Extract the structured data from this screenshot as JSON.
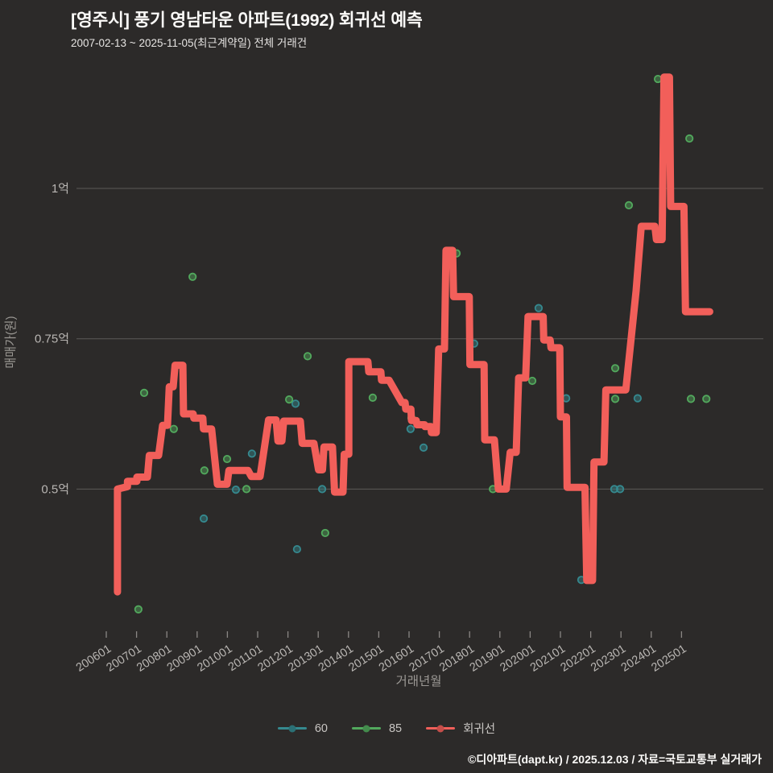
{
  "header": {
    "title": "[영주시] 풍기 영남타운 아파트(1992) 회귀선 예측",
    "subtitle": "2007-02-13 ~ 2025-11-05(최근계약일) 전체 거래건"
  },
  "footer": {
    "credit": "©디아파트(dapt.kr) / 2025.12.03 / 자료=국토교통부 실거래가"
  },
  "colors": {
    "background": "#2c2a29",
    "gridline": "#5c5a58",
    "tick_text": "#b9b6b3",
    "axis_title_text": "#9b9894",
    "title_text": "#fbfaf8"
  },
  "chart_data": {
    "type": "line",
    "title": "[영주시] 풍기 영남타운 아파트(1992) 회귀선 예측",
    "xlabel": "거래년월",
    "ylabel": "매매가(원)",
    "x_axis": {
      "tick_labels": [
        "200601",
        "200701",
        "200801",
        "200901",
        "201001",
        "201101",
        "201201",
        "201301",
        "201401",
        "201501",
        "201601",
        "201701",
        "201801",
        "201901",
        "202001",
        "202101",
        "202201",
        "202301",
        "202401",
        "202501"
      ],
      "tick_years": [
        2006,
        2007,
        2008,
        2009,
        2010,
        2011,
        2012,
        2013,
        2014,
        2015,
        2016,
        2017,
        2018,
        2019,
        2020,
        2021,
        2022,
        2023,
        2024,
        2025
      ]
    },
    "y_axis": {
      "unit": "억원",
      "ticks": [
        {
          "label": "1억",
          "value": 1.0
        },
        {
          "label": "0.75억",
          "value": 0.75
        },
        {
          "label": "0.5억",
          "value": 0.5
        }
      ],
      "ylim": [
        0.27,
        1.22
      ]
    },
    "series": [
      {
        "name": "60",
        "type": "scatter",
        "color": "#35898f",
        "points": [
          [
            2009.22,
            0.451
          ],
          [
            2010.28,
            0.499
          ],
          [
            2010.81,
            0.559
          ],
          [
            2012.25,
            0.642
          ],
          [
            2012.3,
            0.4
          ],
          [
            2013.13,
            0.5
          ],
          [
            2016.05,
            0.6
          ],
          [
            2016.48,
            0.569
          ],
          [
            2018.15,
            0.742
          ],
          [
            2020.28,
            0.801
          ],
          [
            2021.19,
            0.651
          ],
          [
            2021.69,
            0.349
          ],
          [
            2022.78,
            0.5
          ],
          [
            2022.97,
            0.5
          ],
          [
            2023.55,
            0.651
          ]
        ]
      },
      {
        "name": "85",
        "type": "scatter",
        "color": "#52a95d",
        "points": [
          [
            2007.06,
            0.3
          ],
          [
            2007.25,
            0.66
          ],
          [
            2008.23,
            0.6
          ],
          [
            2008.85,
            0.853
          ],
          [
            2009.24,
            0.531
          ],
          [
            2009.99,
            0.55
          ],
          [
            2010.63,
            0.5
          ],
          [
            2012.04,
            0.649
          ],
          [
            2012.65,
            0.721
          ],
          [
            2013.23,
            0.427
          ],
          [
            2014.8,
            0.652
          ],
          [
            2016.08,
            0.618
          ],
          [
            2017.57,
            0.892
          ],
          [
            2018.77,
            0.5
          ],
          [
            2020.07,
            0.68
          ],
          [
            2022.81,
            0.701
          ],
          [
            2022.81,
            0.65
          ],
          [
            2023.26,
            0.972
          ],
          [
            2024.22,
            1.182
          ],
          [
            2025.26,
            1.083
          ],
          [
            2025.31,
            0.65
          ],
          [
            2025.82,
            0.65
          ]
        ]
      },
      {
        "name": "회귀선",
        "type": "line",
        "color": "#f25f5a",
        "points": [
          [
            2006.37,
            0.329
          ],
          [
            2006.37,
            0.5
          ],
          [
            2006.7,
            0.504
          ],
          [
            2006.7,
            0.513
          ],
          [
            2007.01,
            0.513
          ],
          [
            2007.01,
            0.52
          ],
          [
            2007.36,
            0.52
          ],
          [
            2007.42,
            0.556
          ],
          [
            2007.73,
            0.556
          ],
          [
            2007.86,
            0.606
          ],
          [
            2008.02,
            0.606
          ],
          [
            2008.08,
            0.67
          ],
          [
            2008.21,
            0.67
          ],
          [
            2008.27,
            0.706
          ],
          [
            2008.53,
            0.706
          ],
          [
            2008.55,
            0.625
          ],
          [
            2008.87,
            0.625
          ],
          [
            2008.89,
            0.618
          ],
          [
            2009.19,
            0.618
          ],
          [
            2009.21,
            0.6
          ],
          [
            2009.48,
            0.6
          ],
          [
            2009.67,
            0.508
          ],
          [
            2009.99,
            0.508
          ],
          [
            2010.05,
            0.531
          ],
          [
            2010.68,
            0.531
          ],
          [
            2010.79,
            0.521
          ],
          [
            2011.08,
            0.521
          ],
          [
            2011.36,
            0.615
          ],
          [
            2011.61,
            0.615
          ],
          [
            2011.67,
            0.58
          ],
          [
            2011.8,
            0.58
          ],
          [
            2011.86,
            0.613
          ],
          [
            2012.41,
            0.613
          ],
          [
            2012.47,
            0.576
          ],
          [
            2012.86,
            0.576
          ],
          [
            2013.01,
            0.532
          ],
          [
            2013.14,
            0.532
          ],
          [
            2013.19,
            0.57
          ],
          [
            2013.47,
            0.57
          ],
          [
            2013.54,
            0.495
          ],
          [
            2013.82,
            0.495
          ],
          [
            2013.86,
            0.558
          ],
          [
            2014.01,
            0.558
          ],
          [
            2014.01,
            0.712
          ],
          [
            2014.64,
            0.712
          ],
          [
            2014.67,
            0.695
          ],
          [
            2015.07,
            0.695
          ],
          [
            2015.09,
            0.681
          ],
          [
            2015.34,
            0.681
          ],
          [
            2015.76,
            0.644
          ],
          [
            2015.87,
            0.644
          ],
          [
            2015.89,
            0.633
          ],
          [
            2016.06,
            0.633
          ],
          [
            2016.08,
            0.614
          ],
          [
            2016.24,
            0.614
          ],
          [
            2016.26,
            0.607
          ],
          [
            2016.51,
            0.607
          ],
          [
            2016.53,
            0.604
          ],
          [
            2016.72,
            0.604
          ],
          [
            2016.74,
            0.594
          ],
          [
            2016.9,
            0.594
          ],
          [
            2016.98,
            0.733
          ],
          [
            2017.17,
            0.733
          ],
          [
            2017.22,
            0.897
          ],
          [
            2017.44,
            0.897
          ],
          [
            2017.47,
            0.82
          ],
          [
            2017.99,
            0.82
          ],
          [
            2018.01,
            0.707
          ],
          [
            2018.48,
            0.707
          ],
          [
            2018.5,
            0.582
          ],
          [
            2018.82,
            0.582
          ],
          [
            2018.95,
            0.5
          ],
          [
            2019.21,
            0.5
          ],
          [
            2019.34,
            0.561
          ],
          [
            2019.54,
            0.561
          ],
          [
            2019.62,
            0.685
          ],
          [
            2019.85,
            0.685
          ],
          [
            2019.93,
            0.787
          ],
          [
            2020.43,
            0.787
          ],
          [
            2020.45,
            0.748
          ],
          [
            2020.66,
            0.748
          ],
          [
            2020.69,
            0.735
          ],
          [
            2020.98,
            0.735
          ],
          [
            2021.0,
            0.62
          ],
          [
            2021.2,
            0.62
          ],
          [
            2021.22,
            0.503
          ],
          [
            2021.81,
            0.503
          ],
          [
            2021.87,
            0.348
          ],
          [
            2022.06,
            0.348
          ],
          [
            2022.11,
            0.545
          ],
          [
            2022.44,
            0.545
          ],
          [
            2022.5,
            0.665
          ],
          [
            2023.16,
            0.665
          ],
          [
            2023.5,
            0.83
          ],
          [
            2023.67,
            0.937
          ],
          [
            2024.12,
            0.937
          ],
          [
            2024.17,
            0.915
          ],
          [
            2024.36,
            0.915
          ],
          [
            2024.42,
            1.185
          ],
          [
            2024.6,
            1.185
          ],
          [
            2024.64,
            0.97
          ],
          [
            2025.08,
            0.97
          ],
          [
            2025.13,
            0.795
          ],
          [
            2025.93,
            0.795
          ]
        ]
      }
    ],
    "legend_position": "bottom-center",
    "grid": "horizontal-only"
  }
}
